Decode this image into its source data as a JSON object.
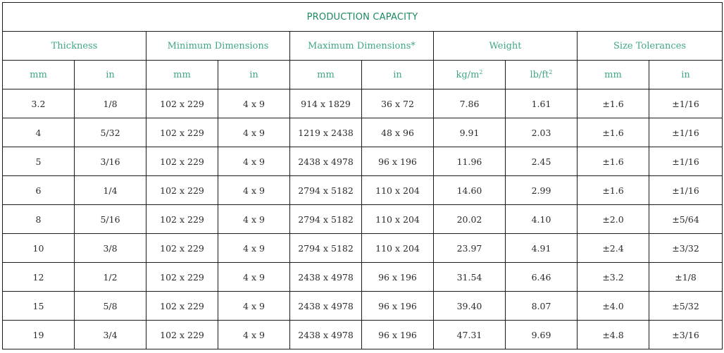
{
  "title": "PRODUCTION CAPACITY",
  "groups": [
    {
      "key": "thickness",
      "label": "Thickness"
    },
    {
      "key": "min",
      "label": "Minimum Dimensions"
    },
    {
      "key": "max",
      "label": "Maximum Dimensions*"
    },
    {
      "key": "weight",
      "label": "Weight"
    },
    {
      "key": "tol",
      "label": "Size Tolerances"
    }
  ],
  "units": {
    "thickness_mm": "mm",
    "thickness_in": "in",
    "min_mm": "mm",
    "min_in": "in",
    "max_mm": "mm",
    "max_in": "in",
    "weight_metric_base": "kg/m",
    "weight_metric_exp": "2",
    "weight_imperial_base": "lb/ft",
    "weight_imperial_exp": "2",
    "tol_mm": "mm",
    "tol_in": "in"
  },
  "rows": [
    [
      "3.2",
      "1/8",
      "102 x 229",
      "4 x 9",
      "914 x 1829",
      "36 x 72",
      "7.86",
      "1.61",
      "±1.6",
      "±1/16"
    ],
    [
      "4",
      "5/32",
      "102 x 229",
      "4 x 9",
      "1219 x 2438",
      "48 x 96",
      "9.91",
      "2.03",
      "±1.6",
      "±1/16"
    ],
    [
      "5",
      "3/16",
      "102 x 229",
      "4 x 9",
      "2438 x 4978",
      "96 x 196",
      "11.96",
      "2.45",
      "±1.6",
      "±1/16"
    ],
    [
      "6",
      "1/4",
      "102 x 229",
      "4 x 9",
      "2794 x 5182",
      "110 x 204",
      "14.60",
      "2.99",
      "±1.6",
      "±1/16"
    ],
    [
      "8",
      "5/16",
      "102 x 229",
      "4 x 9",
      "2794 x 5182",
      "110 x 204",
      "20.02",
      "4.10",
      "±2.0",
      "±5/64"
    ],
    [
      "10",
      "3/8",
      "102 x 229",
      "4 x 9",
      "2794 x 5182",
      "110 x 204",
      "23.97",
      "4.91",
      "±2.4",
      "±3/32"
    ],
    [
      "12",
      "1/2",
      "102 x 229",
      "4 x 9",
      "2438 x 4978",
      "96 x 196",
      "31.54",
      "6.46",
      "±3.2",
      "±1/8"
    ],
    [
      "15",
      "5/8",
      "102 x 229",
      "4 x 9",
      "2438 x 4978",
      "96 x 196",
      "39.40",
      "8.07",
      "±4.0",
      "±5/32"
    ],
    [
      "19",
      "3/4",
      "102 x 229",
      "4 x 9",
      "2438 x 4978",
      "96 x 196",
      "47.31",
      "9.69",
      "±4.8",
      "±3/16"
    ]
  ]
}
